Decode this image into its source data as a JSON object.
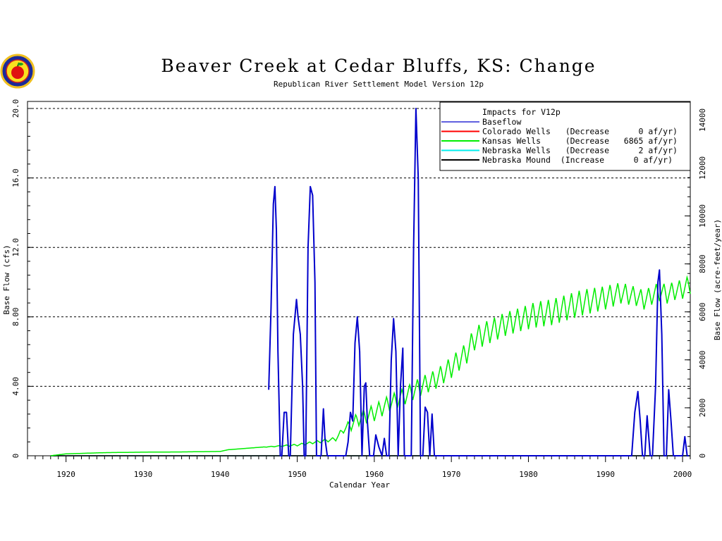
{
  "chart_data": {
    "type": "line",
    "title": "Beaver Creek at Cedar Bluffs, KS: Change",
    "subtitle": "Republican River Settlement Model Version 12p",
    "xlabel": "Calendar Year",
    "ylabel_left": "Base Flow (cfs)",
    "ylabel_right": "Base Flow (acre-feet/year)",
    "xlim": [
      1915,
      2001
    ],
    "ylim_left": [
      0,
      20
    ],
    "ylim_right": [
      0,
      14481
    ],
    "x_ticks": [
      1920,
      1930,
      1940,
      1950,
      1960,
      1970,
      1980,
      1990,
      2000
    ],
    "y_ticks_left": [
      "0",
      "4.00",
      "8.00",
      "12.0",
      "16.0",
      "20.0"
    ],
    "y_ticks_left_values": [
      0,
      4,
      8,
      12,
      16,
      20
    ],
    "y_ticks_right": [
      0,
      2000,
      4000,
      6000,
      8000,
      10000,
      12000,
      14000
    ],
    "grid": "horizontal dashed",
    "legend_position": "top-right",
    "legend": {
      "title": "Impacts for V12p",
      "entries": [
        {
          "label": "Baseflow",
          "color": "#0000cc"
        },
        {
          "label": "Colorado Wells   (Decrease      0 af/yr)",
          "color": "#ff0000"
        },
        {
          "label": "Kansas Wells     (Decrease   6865 af/yr)",
          "color": "#00ee00"
        },
        {
          "label": "Nebraska Wells   (Decrease      2 af/yr)",
          "color": "#00eeee"
        },
        {
          "label": "Nebraska Mound  (Increase      0 af/yr)",
          "color": "#000000"
        }
      ]
    },
    "series": [
      {
        "name": "Baseflow",
        "color": "#0000cc",
        "x": [
          1946.3,
          1946.6,
          1946.9,
          1947.1,
          1947.3,
          1947.5,
          1947.8,
          1948.0,
          1948.3,
          1948.6,
          1948.9,
          1949.1,
          1949.5,
          1949.9,
          1950.1,
          1950.4,
          1950.7,
          1950.9,
          1951.1,
          1951.4,
          1951.7,
          1952.0,
          1952.3,
          1952.5,
          1952.8,
          1953.1,
          1953.4,
          1953.6,
          1953.9,
          1954.2,
          1956.0,
          1956.3,
          1956.6,
          1956.9,
          1957.2,
          1957.5,
          1957.8,
          1958.1,
          1958.4,
          1958.7,
          1958.9,
          1959.1,
          1959.4,
          1959.7,
          1959.9,
          1960.2,
          1960.6,
          1961.0,
          1961.3,
          1961.6,
          1961.9,
          1962.2,
          1962.5,
          1962.8,
          1963.1,
          1963.4,
          1963.7,
          1963.9,
          1964.2,
          1964.5,
          1964.8,
          1965.1,
          1965.4,
          1965.7,
          1966.0,
          1966.3,
          1966.6,
          1966.9,
          1967.2,
          1967.5,
          1967.8,
          1968.1,
          1968.4,
          1968.7,
          1969.0,
          1993.0,
          1993.4,
          1993.8,
          1994.2,
          1994.5,
          1994.8,
          1995.1,
          1995.4,
          1995.8,
          1996.1,
          1996.5,
          1996.8,
          1997.0,
          1997.3,
          1997.6,
          1997.9,
          1998.2,
          1998.5,
          1998.8,
          1999.1,
          1999.4,
          1999.7,
          2000.0,
          2000.3,
          2000.6,
          2000.8
        ],
        "y": [
          3.8,
          8.5,
          14.5,
          15.5,
          13.0,
          6.0,
          0,
          0,
          2.5,
          2.5,
          0,
          0,
          7.0,
          9.0,
          8.0,
          7.0,
          4.0,
          0,
          0,
          12.0,
          15.5,
          15.0,
          10.0,
          0,
          0,
          0,
          2.7,
          1.0,
          0,
          0,
          0,
          0,
          0.8,
          2.5,
          2.0,
          6.5,
          8.0,
          6.0,
          0,
          4.0,
          4.2,
          2.0,
          0,
          0,
          0,
          1.2,
          0.5,
          0,
          1.0,
          0,
          0,
          5.5,
          7.9,
          6.0,
          0,
          4.0,
          6.2,
          0,
          0,
          0,
          0,
          12.0,
          20.0,
          16.0,
          0,
          0,
          2.8,
          2.5,
          0,
          2.4,
          0,
          0,
          0,
          0,
          0,
          0,
          0,
          2.5,
          3.7,
          2.0,
          0,
          0,
          2.3,
          0,
          0,
          4.0,
          10.0,
          10.7,
          7.0,
          0,
          0,
          3.8,
          2.0,
          0,
          0,
          0,
          0,
          0,
          1.1,
          0,
          0
        ]
      },
      {
        "name": "Kansas Wells",
        "color": "#00ee00",
        "x": [
          1918,
          1920,
          1925,
          1930,
          1935,
          1940,
          1941,
          1945,
          1950,
          1952,
          1955,
          1956,
          1957,
          1958,
          1960,
          1962,
          1964,
          1966,
          1968,
          1970,
          1972,
          1973,
          1975,
          1977,
          1979,
          1981,
          1983,
          1985,
          1987,
          1990,
          1992,
          1994,
          1995,
          1996,
          1997,
          1998,
          1999,
          2000,
          2001
        ],
        "y": [
          0,
          80,
          130,
          150,
          160,
          180,
          250,
          350,
          450,
          550,
          700,
          1100,
          1300,
          1550,
          1800,
          2200,
          2500,
          2900,
          3200,
          3700,
          4300,
          4900,
          5200,
          5500,
          5700,
          5900,
          6000,
          6200,
          6400,
          6600,
          6800,
          6650,
          6500,
          6700,
          6850,
          6750,
          6900,
          6950,
          7150
        ],
        "seasonal_amplitude": [
          0,
          0,
          0,
          0,
          0,
          0,
          0,
          0,
          40,
          50,
          80,
          150,
          250,
          300,
          350,
          350,
          350,
          400,
          400,
          450,
          450,
          500,
          500,
          500,
          500,
          550,
          550,
          550,
          550,
          500,
          450,
          400,
          400,
          400,
          400,
          400,
          400,
          400,
          400
        ]
      },
      {
        "name": "Colorado Wells",
        "color": "#ff0000",
        "x": [
          1918,
          2001
        ],
        "y": [
          0,
          0
        ]
      },
      {
        "name": "Nebraska Wells",
        "color": "#00eeee",
        "x": [
          1918,
          2001
        ],
        "y": [
          0,
          0
        ]
      },
      {
        "name": "Nebraska Mound",
        "color": "#000000",
        "x": [
          1918,
          2001
        ],
        "y": [
          0,
          0
        ]
      }
    ]
  },
  "logo": {
    "name": "agency seal"
  }
}
